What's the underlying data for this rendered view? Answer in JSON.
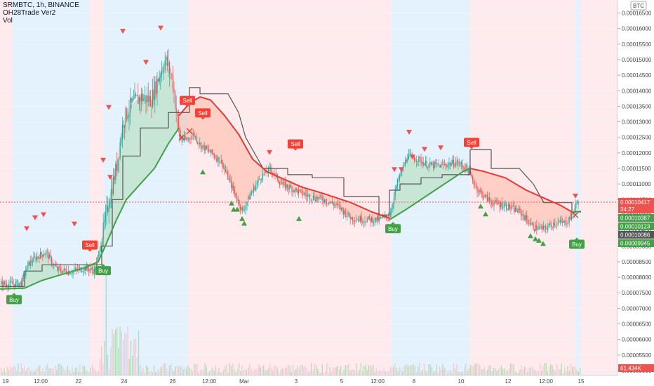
{
  "header": {
    "symbol_line": "SRMBTC, 1h, BINANCE",
    "indicator_line": "OH28Trade Ver2",
    "volume_line": "Vol"
  },
  "currency_badge": "BTC",
  "colors": {
    "up": "#26a69a",
    "down": "#ef5350",
    "green_line": "#43a047",
    "red_line": "#e53935",
    "stair_line": "#555555",
    "bg_blue": "#e3f2fd",
    "bg_red": "#ffebee",
    "buy_label": "#43a047",
    "sell_label": "#f44336",
    "price_badge": "#ef5350",
    "green_badge": "#43a047",
    "gray_badge": "#555555"
  },
  "chart_data": {
    "type": "candlestick",
    "title": "SRMBTC, 1h, BINANCE",
    "x_tick_labels": [
      "19",
      "12:00",
      "22",
      "24",
      "26",
      "12:00",
      "Mar",
      "3",
      "5",
      "12:00",
      "8",
      "10",
      "12",
      "12:00",
      "15"
    ],
    "y_tick_labels": [
      "0.00016500",
      "0.00016000",
      "0.00015500",
      "0.00015000",
      "0.00014500",
      "0.00014000",
      "0.00013500",
      "0.00013000",
      "0.00012500",
      "0.00012000",
      "0.00011500",
      "0.00011000",
      "0.00010500",
      "0.00010000",
      "0.00009500",
      "0.00009000",
      "0.00008500",
      "0.00008000",
      "0.00007500",
      "0.00007000",
      "0.00006500",
      "0.00006000",
      "0.00005500",
      "0.00005000"
    ],
    "ylim": [
      5e-05,
      0.000167
    ],
    "price_profile": [
      [
        0,
        7.79e-05
      ],
      [
        20,
        7.78e-05
      ],
      [
        30,
        7.82e-05
      ],
      [
        40,
        8.45e-05
      ],
      [
        55,
        8.7e-05
      ],
      [
        65,
        8.8e-05
      ],
      [
        80,
        8.25e-05
      ],
      [
        100,
        8.18e-05
      ],
      [
        120,
        8.3e-05
      ],
      [
        135,
        8.2e-05
      ],
      [
        145,
        9.3e-05
      ],
      [
        155,
        0.000105
      ],
      [
        165,
        0.000115
      ],
      [
        175,
        0.00013
      ],
      [
        185,
        0.000135
      ],
      [
        200,
        0.000138
      ],
      [
        215,
        0.000137
      ],
      [
        225,
        0.000144
      ],
      [
        235,
        0.00015
      ],
      [
        245,
        0.000144
      ],
      [
        255,
        0.000125
      ],
      [
        265,
        0.000124
      ],
      [
        275,
        0.000126
      ],
      [
        285,
        0.0001225
      ],
      [
        300,
        0.00012
      ],
      [
        315,
        0.000117
      ],
      [
        330,
        0.000109
      ],
      [
        345,
        0.000101
      ],
      [
        355,
        0.000106
      ],
      [
        370,
        0.000112
      ],
      [
        385,
        0.000115
      ],
      [
        400,
        0.00011
      ],
      [
        420,
        0.000108
      ],
      [
        440,
        0.000106
      ],
      [
        460,
        0.000105
      ],
      [
        480,
        0.000103
      ],
      [
        500,
        9.9e-05
      ],
      [
        520,
        9.85e-05
      ],
      [
        540,
        9.85e-05
      ],
      [
        555,
        0.0001
      ],
      [
        565,
        0.00011
      ],
      [
        580,
        0.000119
      ],
      [
        595,
        0.000118
      ],
      [
        610,
        0.000116
      ],
      [
        630,
        0.000116
      ],
      [
        650,
        0.000117
      ],
      [
        665,
        0.000115
      ],
      [
        680,
        0.000108
      ],
      [
        700,
        0.000104
      ],
      [
        720,
        0.000103
      ],
      [
        740,
        0.000101
      ],
      [
        760,
        9.6e-05
      ],
      [
        775,
        9.55e-05
      ],
      [
        790,
        9.75e-05
      ],
      [
        805,
        9.75e-05
      ],
      [
        815,
        0.0001
      ],
      [
        822,
        0.0001042
      ]
    ],
    "green_line_profile": [
      [
        0,
        7.62e-05
      ],
      [
        35,
        7.65e-05
      ],
      [
        60,
        7.9e-05
      ],
      [
        90,
        8.1e-05
      ],
      [
        120,
        8.3e-05
      ],
      [
        140,
        8.5e-05
      ],
      [
        150,
        9e-05
      ],
      [
        165,
        9.8e-05
      ],
      [
        180,
        0.000105
      ],
      [
        200,
        0.00011
      ],
      [
        220,
        0.000115
      ],
      [
        240,
        0.000123
      ],
      [
        255,
        0.000128
      ]
    ],
    "green_line_profile_2": [
      [
        555,
        9.85e-05
      ],
      [
        580,
        0.000102
      ],
      [
        600,
        0.000105
      ],
      [
        620,
        0.000108
      ],
      [
        640,
        0.000111
      ],
      [
        660,
        0.000114
      ],
      [
        670,
        0.000115
      ]
    ],
    "green_line_profile_3": [
      [
        815,
        0.000101
      ],
      [
        828,
        0.0001012
      ]
    ],
    "red_line_profile": [
      [
        255,
        0.000132
      ],
      [
        270,
        0.000136
      ],
      [
        285,
        0.000138
      ],
      [
        300,
        0.000137
      ],
      [
        320,
        0.000132
      ],
      [
        340,
        0.000126
      ],
      [
        360,
        0.000118
      ],
      [
        380,
        0.000114
      ],
      [
        400,
        0.000112
      ],
      [
        430,
        0.000109
      ],
      [
        460,
        0.000107
      ],
      [
        500,
        0.000104
      ],
      [
        530,
        0.000101
      ],
      [
        555,
        9.9e-05
      ]
    ],
    "red_line_profile_2": [
      [
        670,
        0.000115
      ],
      [
        690,
        0.000114
      ],
      [
        720,
        0.000112
      ],
      [
        750,
        0.000108
      ],
      [
        780,
        0.000105
      ],
      [
        800,
        0.000103
      ],
      [
        815,
        0.000101
      ]
    ],
    "stair_line_profile": [
      [
        0,
        7.7e-05
      ],
      [
        35,
        7.7e-05
      ],
      [
        35,
        8.2e-05
      ],
      [
        60,
        8.2e-05
      ],
      [
        60,
        8.4e-05
      ],
      [
        120,
        8.4e-05
      ],
      [
        145,
        8.4e-05
      ],
      [
        145,
        9e-05
      ],
      [
        160,
        9e-05
      ],
      [
        160,
        0.000105
      ],
      [
        175,
        0.000105
      ],
      [
        175,
        0.000119
      ],
      [
        200,
        0.000119
      ],
      [
        200,
        0.000128
      ],
      [
        240,
        0.000128
      ],
      [
        240,
        0.000133
      ],
      [
        255,
        0.000133
      ],
      [
        270,
        0.000133
      ],
      [
        270,
        0.000141
      ],
      [
        285,
        0.000141
      ],
      [
        285,
        0.000139
      ],
      [
        325,
        0.000139
      ],
      [
        340,
        0.000133
      ],
      [
        350,
        0.000125
      ],
      [
        375,
        0.000115
      ],
      [
        410,
        0.000115
      ],
      [
        410,
        0.000113
      ],
      [
        445,
        0.000113
      ],
      [
        445,
        0.000112
      ],
      [
        490,
        0.000112
      ],
      [
        490,
        0.000106
      ],
      [
        540,
        0.000106
      ],
      [
        540,
        0.0001
      ],
      [
        555,
        0.0001
      ],
      [
        555,
        0.000108
      ],
      [
        570,
        0.000108
      ],
      [
        570,
        0.00011
      ],
      [
        600,
        0.00011
      ],
      [
        600,
        0.000112
      ],
      [
        630,
        0.000112
      ],
      [
        630,
        0.000113
      ],
      [
        670,
        0.000113
      ],
      [
        670,
        0.000121
      ],
      [
        700,
        0.000121
      ],
      [
        700,
        0.000115
      ],
      [
        740,
        0.000115
      ],
      [
        760,
        0.00011
      ],
      [
        775,
        0.000104
      ],
      [
        815,
        0.000104
      ],
      [
        815,
        0.000101
      ],
      [
        828,
        0.000101
      ]
    ],
    "background_bands": [
      {
        "x0": 0,
        "x1": 18,
        "color": "bg_red"
      },
      {
        "x0": 18,
        "x1": 128,
        "color": "bg_blue"
      },
      {
        "x0": 128,
        "x1": 147,
        "color": "bg_red"
      },
      {
        "x0": 147,
        "x1": 268,
        "color": "bg_blue"
      },
      {
        "x0": 268,
        "x1": 558,
        "color": "bg_red"
      },
      {
        "x0": 558,
        "x1": 670,
        "color": "bg_blue"
      },
      {
        "x0": 670,
        "x1": 820,
        "color": "bg_red"
      },
      {
        "x0": 820,
        "x1": 828,
        "color": "bg_blue"
      },
      {
        "x0": 828,
        "x1": 880,
        "color": "bg_red"
      }
    ],
    "buy_labels": [
      {
        "x": 20,
        "price": 7.52e-05,
        "text": "Buy"
      },
      {
        "x": 147,
        "price": 8.45e-05,
        "text": "Buy"
      },
      {
        "x": 560,
        "price": 9.8e-05,
        "text": "Buy"
      },
      {
        "x": 822,
        "price": 9.3e-05,
        "text": "Buy"
      }
    ],
    "sell_labels": [
      {
        "x": 128,
        "price": 8.8e-05,
        "text": "Sell"
      },
      {
        "x": 267,
        "price": 0.0001345,
        "text": "Sell"
      },
      {
        "x": 289,
        "price": 0.0001305,
        "text": "Sell"
      },
      {
        "x": 421,
        "price": 0.0001205,
        "text": "Sell"
      },
      {
        "x": 672,
        "price": 0.000121,
        "text": "Sell"
      }
    ],
    "current_price": "0.00010417",
    "countdown": "34:27",
    "right_badges": [
      {
        "text": "0.00010387",
        "color": "green_badge"
      },
      {
        "text": "0.00010123",
        "color": "green_badge"
      },
      {
        "text": "0.00010086",
        "color": "gray_badge"
      },
      {
        "text": "0.00009945",
        "color": "green_badge"
      }
    ],
    "volume_badge": "61.434K",
    "down_triangles": [
      [
        38,
        9.55e-05
      ],
      [
        50,
        9.9e-05
      ],
      [
        62,
        0.0001
      ],
      [
        106,
        9.7e-05
      ],
      [
        155,
        0.0001345
      ],
      [
        147,
        0.0001175
      ],
      [
        157,
        0.000112
      ],
      [
        175,
        0.000159
      ],
      [
        208,
        0.000149
      ],
      [
        229,
        0.00016
      ],
      [
        384,
        0.00012
      ],
      [
        583,
        0.0001265
      ],
      [
        588,
        0.0001185
      ],
      [
        605,
        0.000121
      ],
      [
        628,
        0.0001215
      ],
      [
        562,
        0.0001145
      ],
      [
        572,
        0.0001145
      ],
      [
        820,
        0.000106
      ]
    ],
    "up_triangles": [
      [
        289,
        0.000114
      ],
      [
        330,
        0.000104
      ],
      [
        333,
        0.000102
      ],
      [
        338,
        0.000102
      ],
      [
        345,
        9.9e-05
      ],
      [
        348,
        9.75e-05
      ],
      [
        426,
        9.9e-05
      ],
      [
        685,
        0.000103
      ],
      [
        692,
        0.0001005
      ],
      [
        756,
        9.35e-05
      ],
      [
        763,
        9.25e-05
      ],
      [
        768,
        9.2e-05
      ],
      [
        774,
        9.1e-05
      ]
    ],
    "x_markers": [
      [
        259,
        0.000125
      ],
      [
        270,
        0.000127
      ],
      [
        820,
        0.0001
      ]
    ]
  }
}
